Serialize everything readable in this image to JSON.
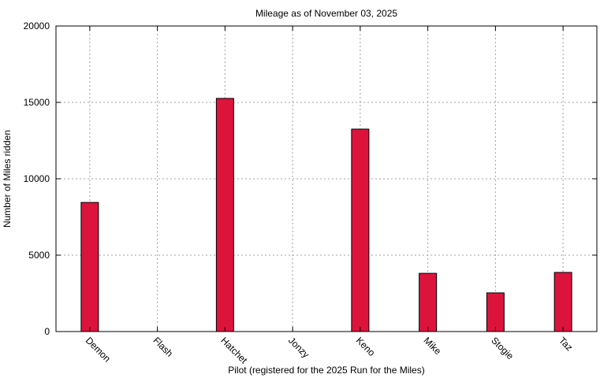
{
  "chart_data": {
    "type": "bar",
    "title": "Mileage as of November 03, 2025",
    "xlabel": "Pilot (registered for the 2025 Run for the Miles)",
    "ylabel": "Number of Miles ridden",
    "categories": [
      "Demon",
      "Flash",
      "Hatchet",
      "Jonzy",
      "Keno",
      "Mike",
      "Stogie",
      "Taz"
    ],
    "values": [
      8450,
      0,
      15260,
      0,
      13250,
      3810,
      2530,
      3870
    ],
    "ylim": [
      0,
      20000
    ],
    "yticks": [
      0,
      5000,
      10000,
      15000,
      20000
    ],
    "grid": true,
    "legend": "none",
    "bar_color": "#dc143c",
    "grid_color": "#a0a0a0"
  }
}
